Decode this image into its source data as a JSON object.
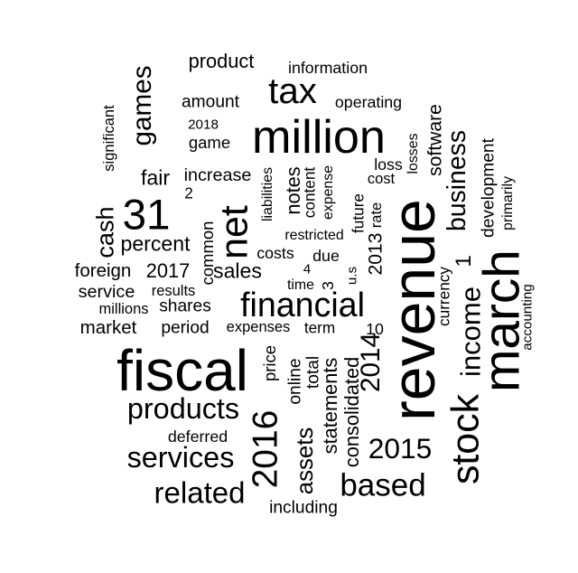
{
  "words": [
    {
      "text": "revenue",
      "weight": 10,
      "vertical": true
    },
    {
      "text": "fiscal",
      "weight": 9.4,
      "vertical": false
    },
    {
      "text": "march",
      "weight": 8.3,
      "vertical": true
    },
    {
      "text": "million",
      "weight": 7.6,
      "vertical": false
    },
    {
      "text": "31",
      "weight": 6.9,
      "vertical": false
    },
    {
      "text": "net",
      "weight": 6.2,
      "vertical": true
    },
    {
      "text": "stock",
      "weight": 6.2,
      "vertical": true
    },
    {
      "text": "tax",
      "weight": 5.8,
      "vertical": false
    },
    {
      "text": "2016",
      "weight": 5.6,
      "vertical": true
    },
    {
      "text": "financial",
      "weight": 5.4,
      "vertical": false
    },
    {
      "text": "based",
      "weight": 5.0,
      "vertical": false
    },
    {
      "text": "related",
      "weight": 4.7,
      "vertical": false
    },
    {
      "text": "services",
      "weight": 4.6,
      "vertical": false
    },
    {
      "text": "products",
      "weight": 4.6,
      "vertical": false
    },
    {
      "text": "2015",
      "weight": 4.5,
      "vertical": false
    },
    {
      "text": "income",
      "weight": 4.4,
      "vertical": true
    },
    {
      "text": "2014",
      "weight": 4.2,
      "vertical": true
    },
    {
      "text": "games",
      "weight": 4.2,
      "vertical": true
    },
    {
      "text": "business",
      "weight": 4.0,
      "vertical": true
    },
    {
      "text": "cash",
      "weight": 3.8,
      "vertical": true
    },
    {
      "text": "assets",
      "weight": 3.6,
      "vertical": true
    },
    {
      "text": "1",
      "weight": 3.4,
      "vertical": true
    },
    {
      "text": "sales",
      "weight": 3.2,
      "vertical": false
    },
    {
      "text": "percent",
      "weight": 3.2,
      "vertical": false
    },
    {
      "text": "fair",
      "weight": 3.2,
      "vertical": false
    },
    {
      "text": "notes",
      "weight": 3.0,
      "vertical": true
    },
    {
      "text": "consolidated",
      "weight": 3.0,
      "vertical": true
    },
    {
      "text": "statements",
      "weight": 3.0,
      "vertical": true
    },
    {
      "text": "product",
      "weight": 3.0,
      "vertical": false
    },
    {
      "text": "2017",
      "weight": 3.0,
      "vertical": false
    },
    {
      "text": "2013",
      "weight": 2.9,
      "vertical": true
    },
    {
      "text": "software",
      "weight": 2.9,
      "vertical": true
    },
    {
      "text": "market",
      "weight": 2.8,
      "vertical": false
    },
    {
      "text": "foreign",
      "weight": 2.8,
      "vertical": false
    },
    {
      "text": "service",
      "weight": 2.7,
      "vertical": false
    },
    {
      "text": "increase",
      "weight": 2.7,
      "vertical": false
    },
    {
      "text": "development",
      "weight": 2.6,
      "vertical": true
    },
    {
      "text": "total",
      "weight": 2.6,
      "vertical": true
    },
    {
      "text": "online",
      "weight": 2.6,
      "vertical": true
    },
    {
      "text": "amount",
      "weight": 2.6,
      "vertical": false
    },
    {
      "text": "period",
      "weight": 2.6,
      "vertical": false
    },
    {
      "text": "shares",
      "weight": 2.6,
      "vertical": false
    },
    {
      "text": "including",
      "weight": 2.6,
      "vertical": false
    },
    {
      "text": "common",
      "weight": 2.5,
      "vertical": true
    },
    {
      "text": "game",
      "weight": 2.5,
      "vertical": false
    },
    {
      "text": "price",
      "weight": 2.5,
      "vertical": true
    },
    {
      "text": "operating",
      "weight": 2.4,
      "vertical": false
    },
    {
      "text": "information",
      "weight": 2.4,
      "vertical": false
    },
    {
      "text": "deferred",
      "weight": 2.4,
      "vertical": false
    },
    {
      "text": "costs",
      "weight": 2.4,
      "vertical": false
    },
    {
      "text": "loss",
      "weight": 2.4,
      "vertical": false
    },
    {
      "text": "due",
      "weight": 2.4,
      "vertical": false
    },
    {
      "text": "3",
      "weight": 2.4,
      "vertical": true
    },
    {
      "text": "10",
      "weight": 2.4,
      "vertical": false
    },
    {
      "text": "currency",
      "weight": 2.3,
      "vertical": true
    },
    {
      "text": "term",
      "weight": 2.3,
      "vertical": false
    },
    {
      "text": "future",
      "weight": 2.3,
      "vertical": true
    },
    {
      "text": "content",
      "weight": 2.3,
      "vertical": true
    },
    {
      "text": "2",
      "weight": 2.3,
      "vertical": false
    },
    {
      "text": "millions",
      "weight": 2.2,
      "vertical": false
    },
    {
      "text": "results",
      "weight": 2.2,
      "vertical": false
    },
    {
      "text": "expenses",
      "weight": 2.2,
      "vertical": false
    },
    {
      "text": "significant",
      "weight": 2.2,
      "vertical": true
    },
    {
      "text": "rate",
      "weight": 2.2,
      "vertical": true
    },
    {
      "text": "cost",
      "weight": 2.2,
      "vertical": false
    },
    {
      "text": "losses",
      "weight": 2.1,
      "vertical": true
    },
    {
      "text": "time",
      "weight": 2.1,
      "vertical": false
    },
    {
      "text": "liabilities",
      "weight": 2.1,
      "vertical": true
    },
    {
      "text": "expense",
      "weight": 2.1,
      "vertical": true
    },
    {
      "text": "restricted",
      "weight": 2.1,
      "vertical": false
    },
    {
      "text": "primarily",
      "weight": 2.1,
      "vertical": true
    },
    {
      "text": "accounting",
      "weight": 2.0,
      "vertical": true
    },
    {
      "text": "2018",
      "weight": 2.0,
      "vertical": false
    },
    {
      "text": "u.s",
      "weight": 2.0,
      "vertical": true
    },
    {
      "text": "4",
      "weight": 2.0,
      "vertical": false
    }
  ]
}
